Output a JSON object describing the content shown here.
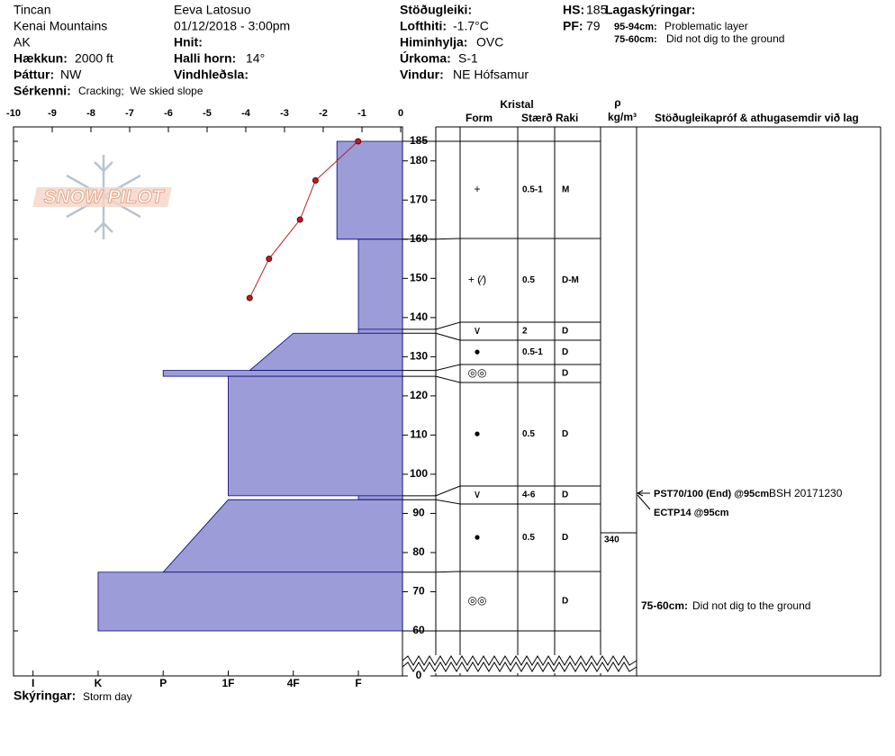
{
  "header": {
    "location": "Tincan",
    "range": "Kenai Mountains",
    "state": "AK",
    "elevation_label": "Hækkun:",
    "elevation": "2000 ft",
    "aspect_label": "Þáttur:",
    "aspect": "NW",
    "features_label": "Sérkenni:",
    "features": "Cracking;  We skied slope",
    "observer": "Eeva Latosuo",
    "datetime": "01/12/2018 - 3:00pm",
    "coords_label": "Hnit:",
    "slope_label": "Halli horn:",
    "slope": "14°",
    "wind_loading_label": "Vindhleðsla:",
    "stability_label": "Stöðugleiki:",
    "air_temp_label": "Lofthiti:",
    "air_temp": "-1.7°C",
    "sky_label": "Himinhylja:",
    "sky": "OVC",
    "precip_label": "Úrkoma:",
    "precip": "S-1",
    "wind_label": "Vindur:",
    "wind": "NE Hófsamur",
    "hs_label": "HS:",
    "hs": 185,
    "pf_label": "PF:",
    "pf": 79,
    "legend_title": "Lagaskýringar:",
    "legend": [
      {
        "range": "95-94cm:",
        "text": "Problematic layer"
      },
      {
        "range": "75-60cm:",
        "text": "Did not dig to the ground"
      }
    ]
  },
  "chart_data": {
    "type": "snow_profile",
    "logo": "SNOW PILOT",
    "xlim": [
      -10,
      0
    ],
    "xticks": [
      -10,
      -9,
      -8,
      -7,
      -6,
      -5,
      -4,
      -3,
      -2,
      -1,
      0
    ],
    "ylim": [
      60,
      185
    ],
    "yticks": [
      60,
      70,
      80,
      90,
      100,
      110,
      120,
      130,
      140,
      150,
      160,
      170,
      180,
      185,
      0
    ],
    "hardness_lim": [
      6.3,
      0.35
    ],
    "hardness_ticks": [
      {
        "value": 6,
        "label": "I"
      },
      {
        "value": 5,
        "label": "K"
      },
      {
        "value": 4,
        "label": "P"
      },
      {
        "value": 3,
        "label": "1F"
      },
      {
        "value": 2,
        "label": "4F"
      },
      {
        "value": 1,
        "label": "F"
      }
    ],
    "temperature": {
      "color": "#b22222",
      "depths": [
        185,
        175,
        165,
        155,
        145
      ],
      "temps": [
        -1.1,
        -2.2,
        -2.6,
        -3.4,
        -3.9
      ]
    },
    "layer_color": "#9c9cd8",
    "columns": {
      "crystal": "Kristal",
      "form": "Form",
      "size": "Stærð",
      "moisture": "Raki",
      "rho": "ρ",
      "density_unit": "kg/m³",
      "tests": "Stöðugleikapróf & athugasemdir við lag"
    },
    "layers": [
      {
        "top": 185,
        "bottom": 160,
        "hardness_top": 1.33,
        "hardness_bottom": 1.33,
        "form": "+",
        "size": "0.5-1",
        "moisture": "M"
      },
      {
        "top": 160,
        "bottom": 137,
        "hardness_top": 1,
        "hardness_bottom": 1,
        "form": "+ (⁄)",
        "size": "0.5",
        "moisture": "D-M"
      },
      {
        "top": 137,
        "bottom": 136,
        "hardness_top": 1,
        "hardness_bottom": 1,
        "form": "∨",
        "size": "2",
        "moisture": "D"
      },
      {
        "top": 136,
        "bottom": 126.5,
        "hardness_top": 2,
        "hardness_bottom": 2.67,
        "form": "●",
        "size": "0.5-1",
        "moisture": "D"
      },
      {
        "top": 126.5,
        "bottom": 125,
        "hardness_top": 4,
        "hardness_bottom": 4,
        "form": "◎◎",
        "size": null,
        "moisture": "D"
      },
      {
        "top": 125,
        "bottom": 94.5,
        "hardness_top": 3,
        "hardness_bottom": 3,
        "form": "●",
        "size": "0.5",
        "moisture": "D"
      },
      {
        "top": 94.5,
        "bottom": 93.5,
        "hardness_top": 1,
        "hardness_bottom": 1,
        "form": "∨",
        "size": "4-6",
        "moisture": "D"
      },
      {
        "top": 93.5,
        "bottom": 75,
        "hardness_top": 3,
        "hardness_bottom": 4,
        "form": "●",
        "size": "0.5",
        "moisture": "D",
        "density": 340
      },
      {
        "top": 75,
        "bottom": 60,
        "hardness_top": 5,
        "hardness_bottom": 5,
        "form": "◎◎",
        "size": null,
        "moisture": "D"
      }
    ],
    "tests": [
      {
        "text": "PST70/100 (End) @95cm",
        "note": "BSH 20171230"
      },
      {
        "text": "ECTP14 @95cm"
      }
    ],
    "comments": [
      {
        "range": "75-60cm:",
        "text": "Did not dig to the ground"
      }
    ],
    "notes_label": "Skýringar:",
    "notes": "Storm day"
  }
}
